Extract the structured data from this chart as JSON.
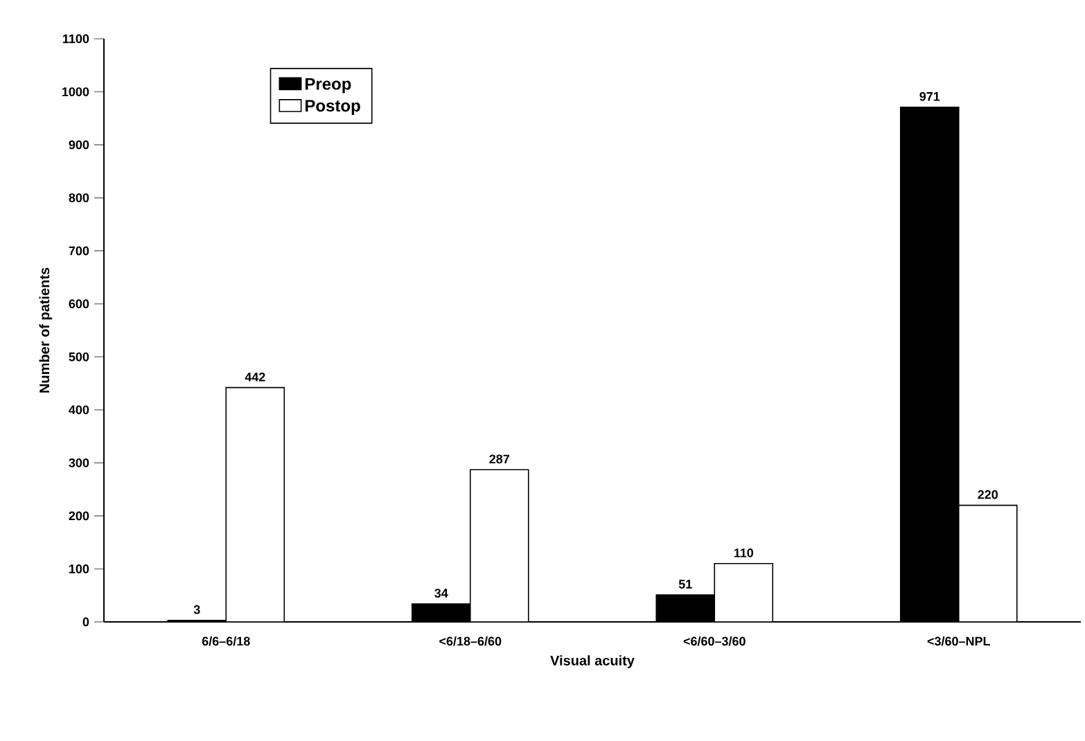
{
  "chart_data": {
    "type": "bar",
    "xlabel": "Visual acuity",
    "ylabel": "Number of patients",
    "categories": [
      "6/6–6/18",
      "<6/18–6/60",
      "<6/60–3/60",
      "<3/60–NPL"
    ],
    "series": [
      {
        "name": "Preop",
        "color": "#000000",
        "values": [
          3,
          34,
          51,
          971
        ]
      },
      {
        "name": "Postop",
        "color": "#ffffff",
        "values": [
          442,
          287,
          110,
          220
        ]
      }
    ],
    "ylim": [
      0,
      1100
    ],
    "yticks": [
      0,
      100,
      200,
      300,
      400,
      500,
      600,
      700,
      800,
      900,
      1000,
      1100
    ],
    "data_labels": true,
    "legend": "top left",
    "grid": false
  }
}
